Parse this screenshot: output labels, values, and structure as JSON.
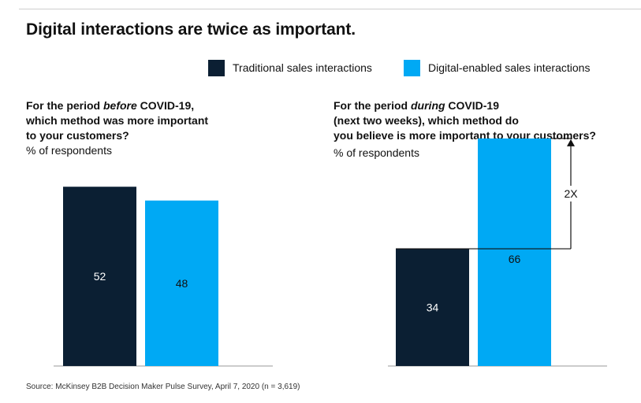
{
  "title": "Digital interactions are twice as important.",
  "legend": [
    {
      "label": "Traditional sales interactions",
      "color": "#0b1f33"
    },
    {
      "label": "Digital-enabled sales interactions",
      "color": "#00a9f4"
    }
  ],
  "left_panel": {
    "q_pre": "For the period ",
    "q_em": "before",
    "q_line1_post": " COVID-19,",
    "q_line2": "which method was more important",
    "q_line3": "to your customers?",
    "subtitle": "% of respondents"
  },
  "right_panel": {
    "q_pre": "For the period ",
    "q_em": "during",
    "q_line1_post": " COVID-19",
    "q_line2": "(next two weeks), which method do",
    "q_line3": "you believe is more important to your customers?",
    "subtitle": "% of respondents",
    "annotation": "2X"
  },
  "chart_data": [
    {
      "type": "bar",
      "categories": [
        "Traditional sales interactions",
        "Digital-enabled sales interactions"
      ],
      "values": [
        52,
        48
      ],
      "colors": [
        "#0b1f33",
        "#00a9f4"
      ],
      "title": "For the period before COVID-19, which method was more important to your customers?",
      "ylabel": "% of respondents"
    },
    {
      "type": "bar",
      "categories": [
        "Traditional sales interactions",
        "Digital-enabled sales interactions"
      ],
      "values": [
        34,
        66
      ],
      "colors": [
        "#0b1f33",
        "#00a9f4"
      ],
      "title": "For the period during COVID-19 (next two weeks), which method do you believe is more important to your customers?",
      "ylabel": "% of respondents",
      "annotation": "2X"
    }
  ],
  "source": "Source: McKinsey B2B Decision Maker Pulse Survey, April 7, 2020 (n = 3,619)"
}
